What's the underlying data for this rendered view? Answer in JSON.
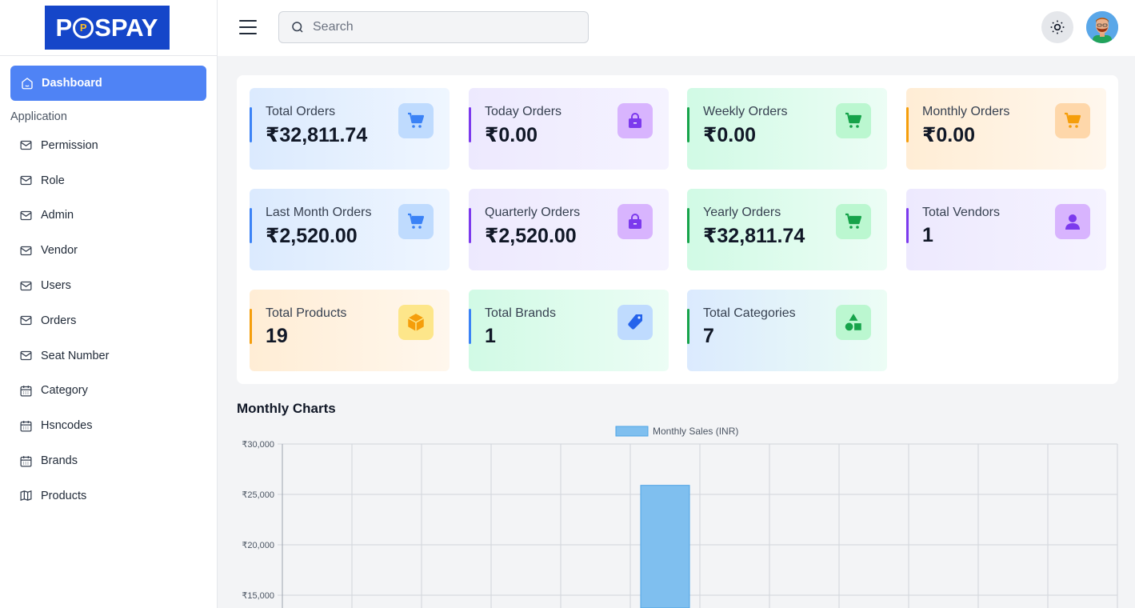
{
  "brand": {
    "logo_text_before": "P",
    "logo_text_after": "SPAY",
    "logo_circle": "P"
  },
  "sidebar": {
    "active": {
      "label": "Dashboard",
      "icon": "home-icon"
    },
    "section": "Application",
    "items": [
      {
        "label": "Permission",
        "icon": "mail-icon"
      },
      {
        "label": "Role",
        "icon": "mail-icon"
      },
      {
        "label": "Admin",
        "icon": "mail-icon"
      },
      {
        "label": "Vendor",
        "icon": "mail-icon"
      },
      {
        "label": "Users",
        "icon": "mail-icon"
      },
      {
        "label": "Orders",
        "icon": "mail-icon"
      },
      {
        "label": "Seat Number",
        "icon": "mail-icon"
      },
      {
        "label": "Category",
        "icon": "calendar-icon"
      },
      {
        "label": "Hsncodes",
        "icon": "calendar-icon"
      },
      {
        "label": "Brands",
        "icon": "calendar-icon"
      },
      {
        "label": "Products",
        "icon": "map-icon"
      }
    ]
  },
  "header": {
    "search_placeholder": "Search"
  },
  "stats": [
    {
      "label": "Total Orders",
      "value": "₹32,811.74",
      "icon": "cart-icon",
      "accent": "#3b82f6"
    },
    {
      "label": "Today Orders",
      "value": "₹0.00",
      "icon": "bag-icon",
      "accent": "#7c3aed"
    },
    {
      "label": "Weekly Orders",
      "value": "₹0.00",
      "icon": "cart-icon",
      "accent": "#16a34a"
    },
    {
      "label": "Monthly Orders",
      "value": "₹0.00",
      "icon": "cart-icon",
      "accent": "#f59e0b"
    },
    {
      "label": "Last Month Orders",
      "value": "₹2,520.00",
      "icon": "cart-icon",
      "accent": "#3b82f6"
    },
    {
      "label": "Quarterly Orders",
      "value": "₹2,520.00",
      "icon": "bag-icon",
      "accent": "#7c3aed"
    },
    {
      "label": "Yearly Orders",
      "value": "₹32,811.74",
      "icon": "cart-icon",
      "accent": "#16a34a"
    },
    {
      "label": "Total Vendors",
      "value": "1",
      "icon": "user-icon",
      "accent": "#7c3aed"
    },
    {
      "label": "Total Products",
      "value": "19",
      "icon": "box-icon",
      "accent": "#f59e0b"
    },
    {
      "label": "Total Brands",
      "value": "1",
      "icon": "tag-icon",
      "accent": "#3b82f6"
    },
    {
      "label": "Total Categories",
      "value": "7",
      "icon": "shapes-icon",
      "accent": "#16a34a"
    }
  ],
  "chart_section_title": "Monthly Charts",
  "chart_data": {
    "type": "bar",
    "title": "",
    "series": [
      {
        "name": "Monthly Sales (INR)",
        "color": "#7fbfef",
        "border": "#4ea4e6",
        "values": [
          0,
          0,
          0,
          0,
          0,
          25900,
          0,
          0,
          0,
          0,
          0,
          0
        ]
      }
    ],
    "categories": [
      "",
      "",
      "",
      "",
      "",
      "",
      "",
      "",
      "",
      "",
      "",
      ""
    ],
    "yticks": [
      "₹30,000",
      "₹25,000",
      "₹20,000",
      "₹15,000"
    ],
    "ylim": [
      15000,
      30000
    ],
    "grid": true,
    "legend": "top"
  }
}
